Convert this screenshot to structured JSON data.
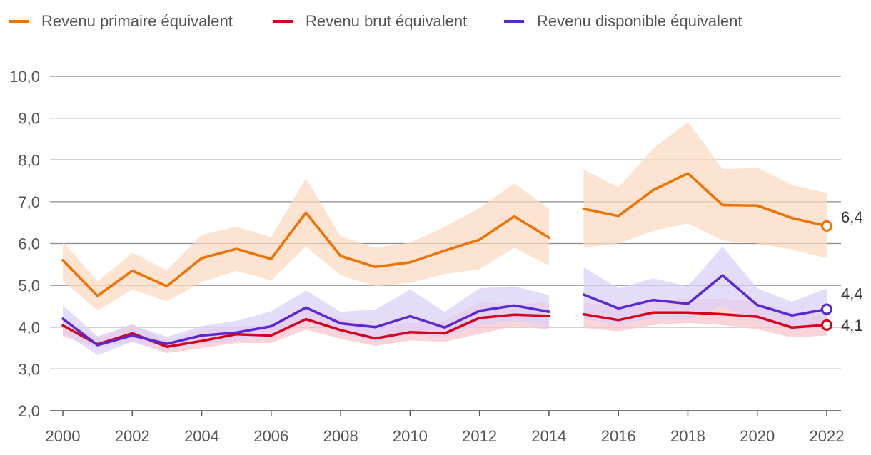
{
  "chart_data": {
    "type": "line",
    "title": "",
    "xlabel": "",
    "ylabel": "",
    "ylim": [
      2.0,
      10.0
    ],
    "yticks": [
      "2,0",
      "3,0",
      "4,0",
      "5,0",
      "6,0",
      "7,0",
      "8,0",
      "9,0",
      "10,0"
    ],
    "ytick_values": [
      2,
      3,
      4,
      5,
      6,
      7,
      8,
      9,
      10
    ],
    "xticks": [
      "2000",
      "2002",
      "2004",
      "2006",
      "2008",
      "2010",
      "2012",
      "2014",
      "2016",
      "2018",
      "2020",
      "2022"
    ],
    "xtick_values": [
      2000,
      2002,
      2004,
      2006,
      2008,
      2010,
      2012,
      2014,
      2016,
      2018,
      2020,
      2022
    ],
    "xlim": [
      2000,
      2022
    ],
    "grid": "horizontal",
    "legend_position": "top",
    "legend": [
      {
        "name": "Revenu primaire équivalent",
        "color": "#f07100"
      },
      {
        "name": "Revenu brut équivalent",
        "color": "#d7001b"
      },
      {
        "name": "Revenu disponible équivalent",
        "color": "#5a28d2"
      }
    ],
    "series": [
      {
        "name": "Revenu primaire équivalent",
        "color": "#f07100",
        "band_color": "#fcd9c0",
        "x": [
          2000,
          2001,
          2002,
          2003,
          2004,
          2005,
          2006,
          2007,
          2008,
          2009,
          2010,
          2011,
          2012,
          2013,
          2014,
          2015,
          2016,
          2017,
          2018,
          2019,
          2020,
          2021,
          2022
        ],
        "values": [
          5.6,
          4.75,
          5.35,
          4.98,
          5.65,
          5.87,
          5.63,
          6.74,
          5.7,
          5.44,
          5.55,
          5.83,
          6.09,
          6.65,
          6.14,
          6.83,
          6.66,
          7.28,
          7.68,
          6.92,
          6.91,
          6.61,
          6.42
        ],
        "lower": [
          5.1,
          4.4,
          4.9,
          4.62,
          5.08,
          5.35,
          5.12,
          5.93,
          5.24,
          4.98,
          5.06,
          5.27,
          5.38,
          5.9,
          5.47,
          5.9,
          6.0,
          6.3,
          6.48,
          6.07,
          6.0,
          5.85,
          5.65
        ],
        "upper": [
          6.05,
          5.1,
          5.78,
          5.36,
          6.21,
          6.4,
          6.15,
          7.57,
          6.17,
          5.9,
          6.02,
          6.4,
          6.85,
          7.44,
          6.84,
          7.77,
          7.35,
          8.27,
          8.91,
          7.78,
          7.81,
          7.4,
          7.21
        ],
        "end_label": "6,4"
      },
      {
        "name": "Revenu brut équivalent",
        "color": "#d7001b",
        "band_color": "#f8c4cb",
        "x": [
          2000,
          2001,
          2002,
          2003,
          2004,
          2005,
          2006,
          2007,
          2008,
          2009,
          2010,
          2011,
          2012,
          2013,
          2014,
          2015,
          2016,
          2017,
          2018,
          2019,
          2020,
          2021,
          2022
        ],
        "values": [
          4.04,
          3.59,
          3.85,
          3.53,
          3.67,
          3.83,
          3.8,
          4.19,
          3.93,
          3.73,
          3.88,
          3.85,
          4.22,
          4.3,
          4.27,
          4.31,
          4.17,
          4.35,
          4.35,
          4.31,
          4.25,
          3.99,
          4.05
        ],
        "lower": [
          3.78,
          3.5,
          3.65,
          3.38,
          3.5,
          3.62,
          3.62,
          3.94,
          3.72,
          3.55,
          3.68,
          3.65,
          3.84,
          4.02,
          3.95,
          3.98,
          3.9,
          4.05,
          4.1,
          4.05,
          3.95,
          3.75,
          3.8
        ],
        "upper": [
          4.2,
          3.74,
          4.08,
          3.68,
          3.95,
          4.02,
          4.05,
          4.48,
          4.2,
          4.05,
          4.1,
          4.15,
          4.6,
          4.55,
          4.6,
          4.58,
          4.5,
          4.62,
          4.68,
          4.68,
          4.6,
          4.35,
          4.4
        ],
        "end_label": "4,1"
      },
      {
        "name": "Revenu disponible équivalent",
        "color": "#5a28d2",
        "band_color": "#dad0f6",
        "x": [
          2000,
          2001,
          2002,
          2003,
          2004,
          2005,
          2006,
          2007,
          2008,
          2009,
          2010,
          2011,
          2012,
          2013,
          2014,
          2015,
          2016,
          2017,
          2018,
          2019,
          2020,
          2021,
          2022
        ],
        "values": [
          4.2,
          3.57,
          3.8,
          3.6,
          3.8,
          3.87,
          4.02,
          4.47,
          4.09,
          4.0,
          4.26,
          3.99,
          4.39,
          4.52,
          4.37,
          4.78,
          4.45,
          4.65,
          4.56,
          5.24,
          4.53,
          4.28,
          4.43
        ],
        "lower": [
          3.88,
          3.33,
          3.65,
          3.45,
          3.6,
          3.68,
          3.78,
          4.12,
          3.85,
          3.65,
          3.82,
          3.75,
          4.05,
          4.15,
          4.0,
          4.2,
          4.05,
          4.22,
          4.2,
          4.5,
          4.15,
          3.95,
          4.0
        ],
        "upper": [
          4.53,
          3.78,
          4.05,
          3.77,
          4.03,
          4.15,
          4.38,
          4.88,
          4.37,
          4.42,
          4.9,
          4.37,
          4.93,
          4.98,
          4.77,
          5.43,
          4.93,
          5.17,
          4.98,
          5.93,
          4.93,
          4.61,
          4.93
        ],
        "end_label": "4,4"
      }
    ],
    "gap_between": [
      2014,
      2015
    ]
  }
}
